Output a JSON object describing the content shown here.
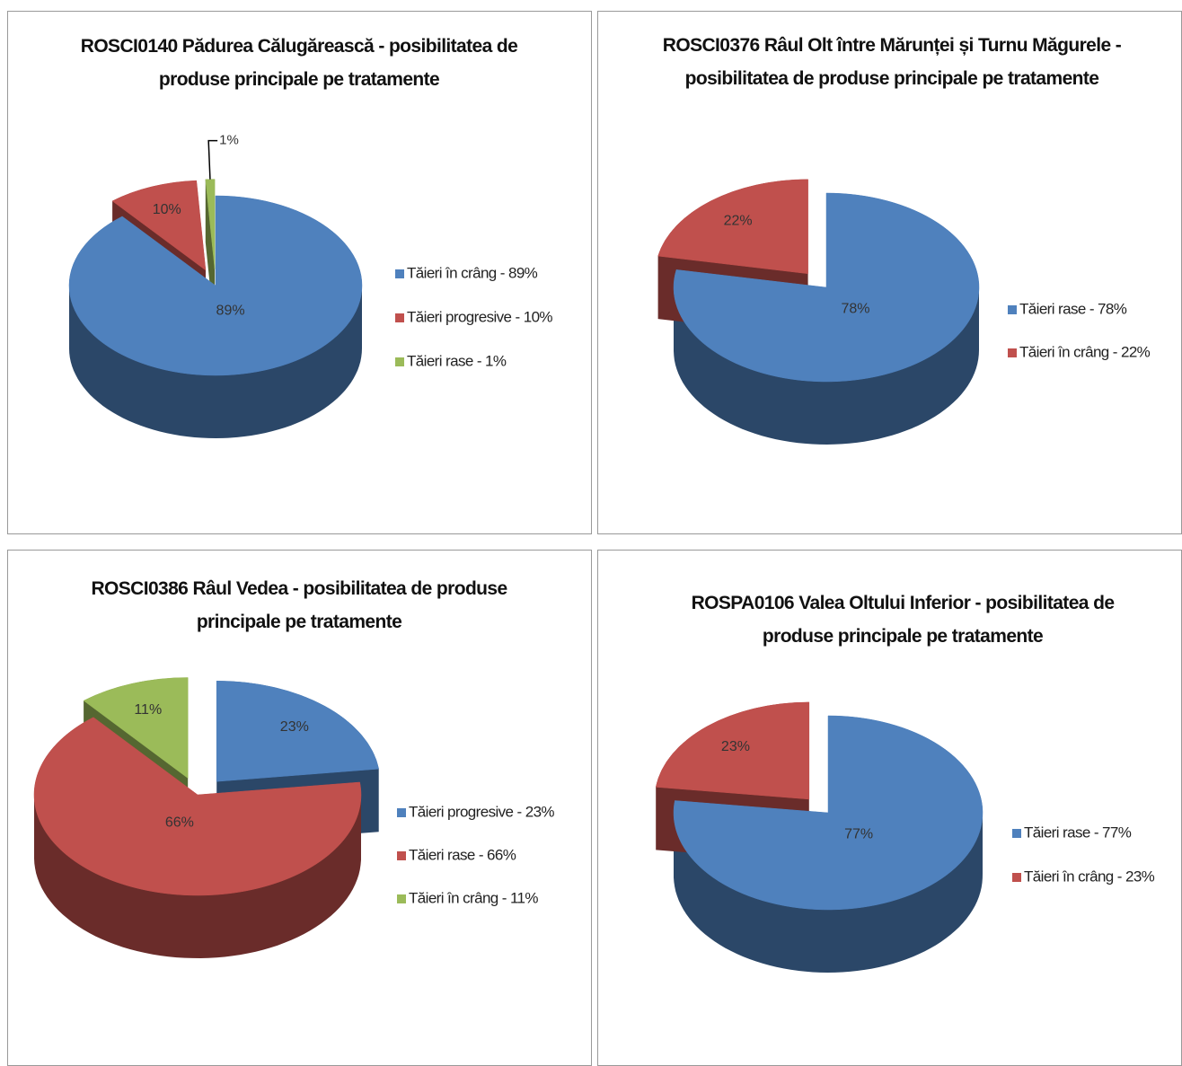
{
  "chart_data": [
    {
      "type": "pie",
      "title": "ROSCI0140 Pădurea Călugărească - posibilitatea de produse principale pe tratamente",
      "categories": [
        "Tăieri în crâng - 89%",
        "Tăieri progresive - 10%",
        "Tăieri rase - 1%"
      ],
      "values": [
        89,
        10,
        1
      ],
      "value_labels": [
        "89%",
        "10%",
        "1%"
      ],
      "colors": [
        "#4f81bd",
        "#c0504d",
        "#9bbb59"
      ]
    },
    {
      "type": "pie",
      "title": "ROSCI0376 Râul Olt între Mărunței și Turnu Măgurele - posibilitatea de produse principale pe tratamente",
      "categories": [
        "Tăieri rase - 78%",
        "Tăieri în crâng - 22%"
      ],
      "values": [
        78,
        22
      ],
      "value_labels": [
        "78%",
        "22%"
      ],
      "colors": [
        "#4f81bd",
        "#c0504d"
      ]
    },
    {
      "type": "pie",
      "title": "ROSCI0386 Râul Vedea - posibilitatea de produse principale pe tratamente",
      "categories": [
        "Tăieri progresive - 23%",
        "Tăieri rase - 66%",
        "Tăieri în crâng - 11%"
      ],
      "values": [
        23,
        66,
        11
      ],
      "value_labels": [
        "23%",
        "66%",
        "11%"
      ],
      "colors": [
        "#4f81bd",
        "#c0504d",
        "#9bbb59"
      ]
    },
    {
      "type": "pie",
      "title": "ROSPA0106 Valea Oltului Inferior - posibilitatea de produse principale pe tratamente",
      "categories": [
        "Tăieri rase - 77%",
        "Tăieri în crâng - 23%"
      ],
      "values": [
        77,
        23
      ],
      "value_labels": [
        "77%",
        "23%"
      ],
      "colors": [
        "#4f81bd",
        "#c0504d"
      ]
    }
  ]
}
